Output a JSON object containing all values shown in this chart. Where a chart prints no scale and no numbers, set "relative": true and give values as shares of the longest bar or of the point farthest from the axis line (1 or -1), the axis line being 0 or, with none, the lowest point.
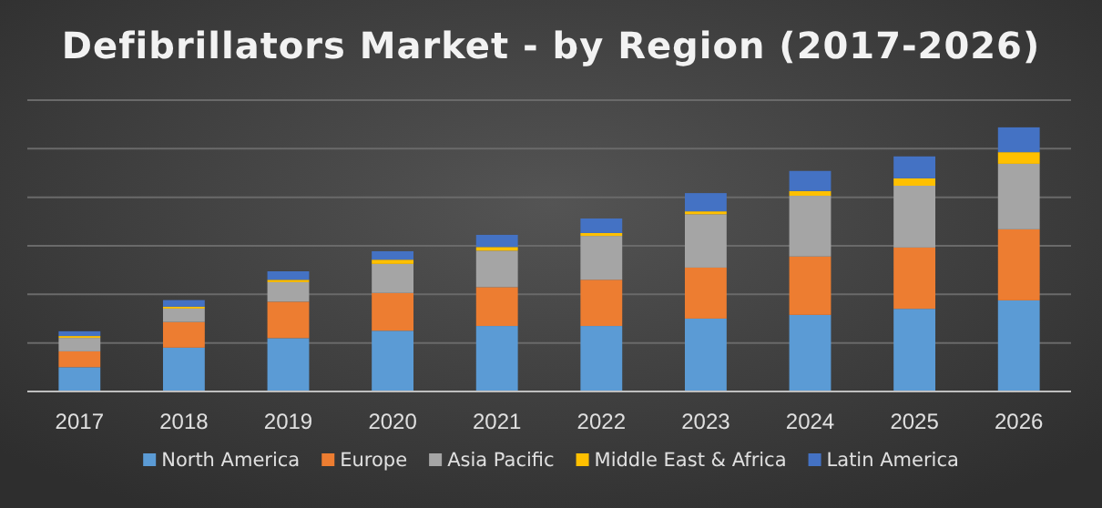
{
  "chart_data": {
    "type": "bar",
    "title": "Defibrillators Market - by Region (2017-2026)",
    "categories": [
      "2017",
      "2018",
      "2019",
      "2020",
      "2021",
      "2022",
      "2023",
      "2024",
      "2025",
      "2026"
    ],
    "stacked": true,
    "relative": true,
    "grid": "y",
    "legend": "bottom",
    "series": [
      {
        "name": "North America",
        "color": "#5b9bd5",
        "values": [
          0.092,
          0.166,
          0.202,
          0.23,
          0.248,
          0.248,
          0.276,
          0.29,
          0.313,
          0.345
        ]
      },
      {
        "name": "Europe",
        "color": "#ed7d31",
        "values": [
          0.06,
          0.097,
          0.138,
          0.143,
          0.147,
          0.175,
          0.193,
          0.221,
          0.232,
          0.269
        ]
      },
      {
        "name": "Asia Pacific",
        "color": "#a5a5a5",
        "values": [
          0.051,
          0.051,
          0.074,
          0.11,
          0.138,
          0.166,
          0.202,
          0.23,
          0.234,
          0.248
        ]
      },
      {
        "name": "Middle East & Africa",
        "color": "#ffc000",
        "values": [
          0.007,
          0.007,
          0.009,
          0.016,
          0.014,
          0.011,
          0.011,
          0.018,
          0.028,
          0.044
        ]
      },
      {
        "name": "Latin America",
        "color": "#4472c4",
        "values": [
          0.018,
          0.025,
          0.032,
          0.032,
          0.046,
          0.055,
          0.069,
          0.076,
          0.083,
          0.094
        ]
      }
    ]
  }
}
